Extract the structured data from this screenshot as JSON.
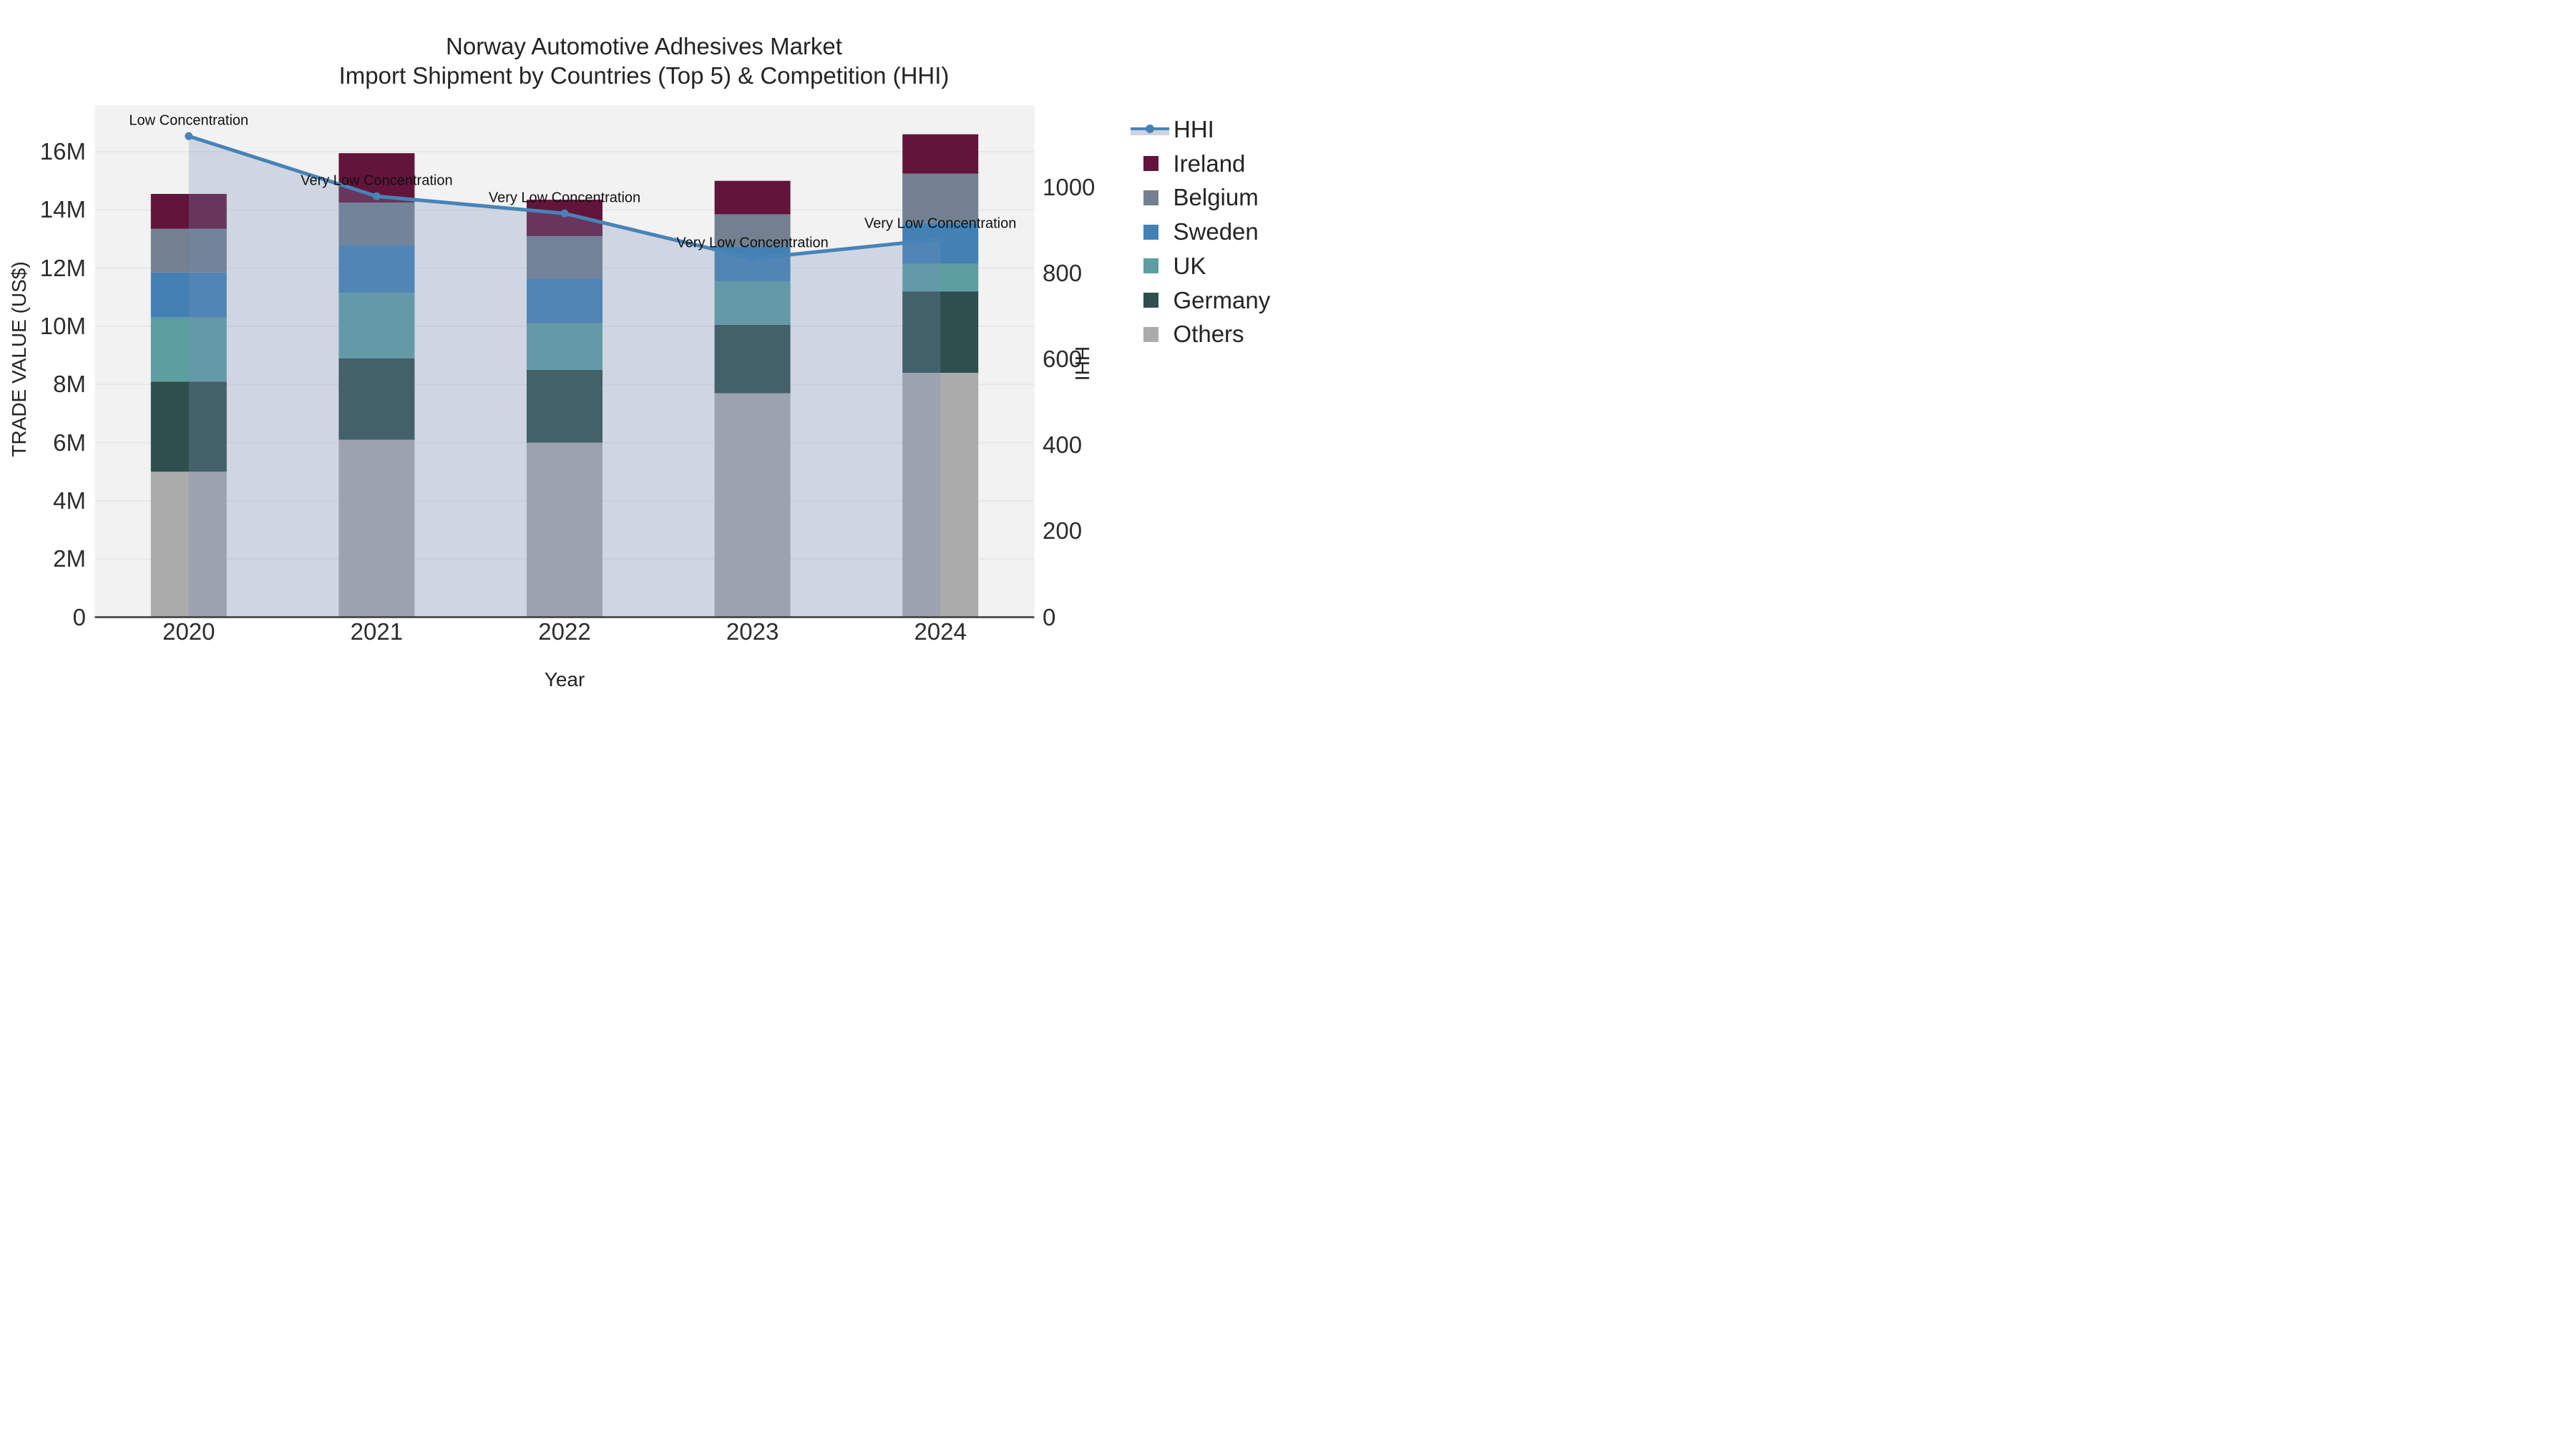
{
  "title": {
    "line1": "Norway Automotive Adhesives Market",
    "line2": "Import Shipment by Countries (Top 5) & Competition (HHI)"
  },
  "chart_data": {
    "type": "bar",
    "subtype": "stacked-bars-with-hhi-line-overlay",
    "categories": [
      "2020",
      "2021",
      "2022",
      "2023",
      "2024"
    ],
    "unit": "US$ millions",
    "series": [
      {
        "name": "Others",
        "color": "#ababab",
        "values": [
          5.0,
          6.1,
          6.0,
          7.7,
          8.4
        ]
      },
      {
        "name": "Germany",
        "color": "#2e4f4c",
        "values": [
          3.1,
          2.8,
          2.5,
          2.35,
          2.8
        ]
      },
      {
        "name": "UK",
        "color": "#5d9ea1",
        "values": [
          2.2,
          2.25,
          1.6,
          1.5,
          0.95
        ]
      },
      {
        "name": "Sweden",
        "color": "#4381b5",
        "values": [
          1.55,
          1.65,
          1.55,
          1.2,
          1.4
        ]
      },
      {
        "name": "Belgium",
        "color": "#72808f",
        "values": [
          1.5,
          1.45,
          1.45,
          1.1,
          1.7
        ]
      },
      {
        "name": "Ireland",
        "color": "#63143a",
        "values": [
          1.2,
          1.7,
          1.25,
          1.15,
          1.35
        ]
      }
    ],
    "line": {
      "name": "HHI",
      "color": "#4783b7",
      "fill_color": "rgba(118,142,182,0.28)",
      "axis": "right",
      "values": [
        1120,
        980,
        940,
        835,
        880
      ]
    },
    "annotations": [
      {
        "category": "2020",
        "text": "Low Concentration"
      },
      {
        "category": "2021",
        "text": "Very Low Concentration"
      },
      {
        "category": "2022",
        "text": "Very Low Concentration"
      },
      {
        "category": "2023",
        "text": "Very Low Concentration"
      },
      {
        "category": "2024",
        "text": "Very Low Concentration"
      }
    ],
    "xlabel": "Year",
    "ylabel_left": "TRADE VALUE (US$)",
    "ylabel_right": "HHI",
    "yticks_left": {
      "values_millions": [
        0,
        2,
        4,
        6,
        8,
        10,
        12,
        14,
        16
      ],
      "labels": [
        "0",
        "2M",
        "4M",
        "6M",
        "8M",
        "10M",
        "12M",
        "14M",
        "16M"
      ]
    },
    "yticks_right": {
      "values": [
        0,
        200,
        400,
        600,
        800,
        1000
      ],
      "labels": [
        "0",
        "200",
        "400",
        "600",
        "800",
        "1000"
      ]
    },
    "ylim_left_millions": [
      0,
      17.6
    ],
    "ylim_right": [
      0,
      1192
    ],
    "grid": true,
    "legend_position": "right",
    "legend_order": [
      "HHI",
      "Ireland",
      "Belgium",
      "Sweden",
      "UK",
      "Germany",
      "Others"
    ]
  },
  "colors": {
    "figure_bg": "#ffffff",
    "plot_bg": "#f2f2f2",
    "grid": "#e8e8e8",
    "axis_line": "#3b3b3b",
    "text": "#242424"
  }
}
